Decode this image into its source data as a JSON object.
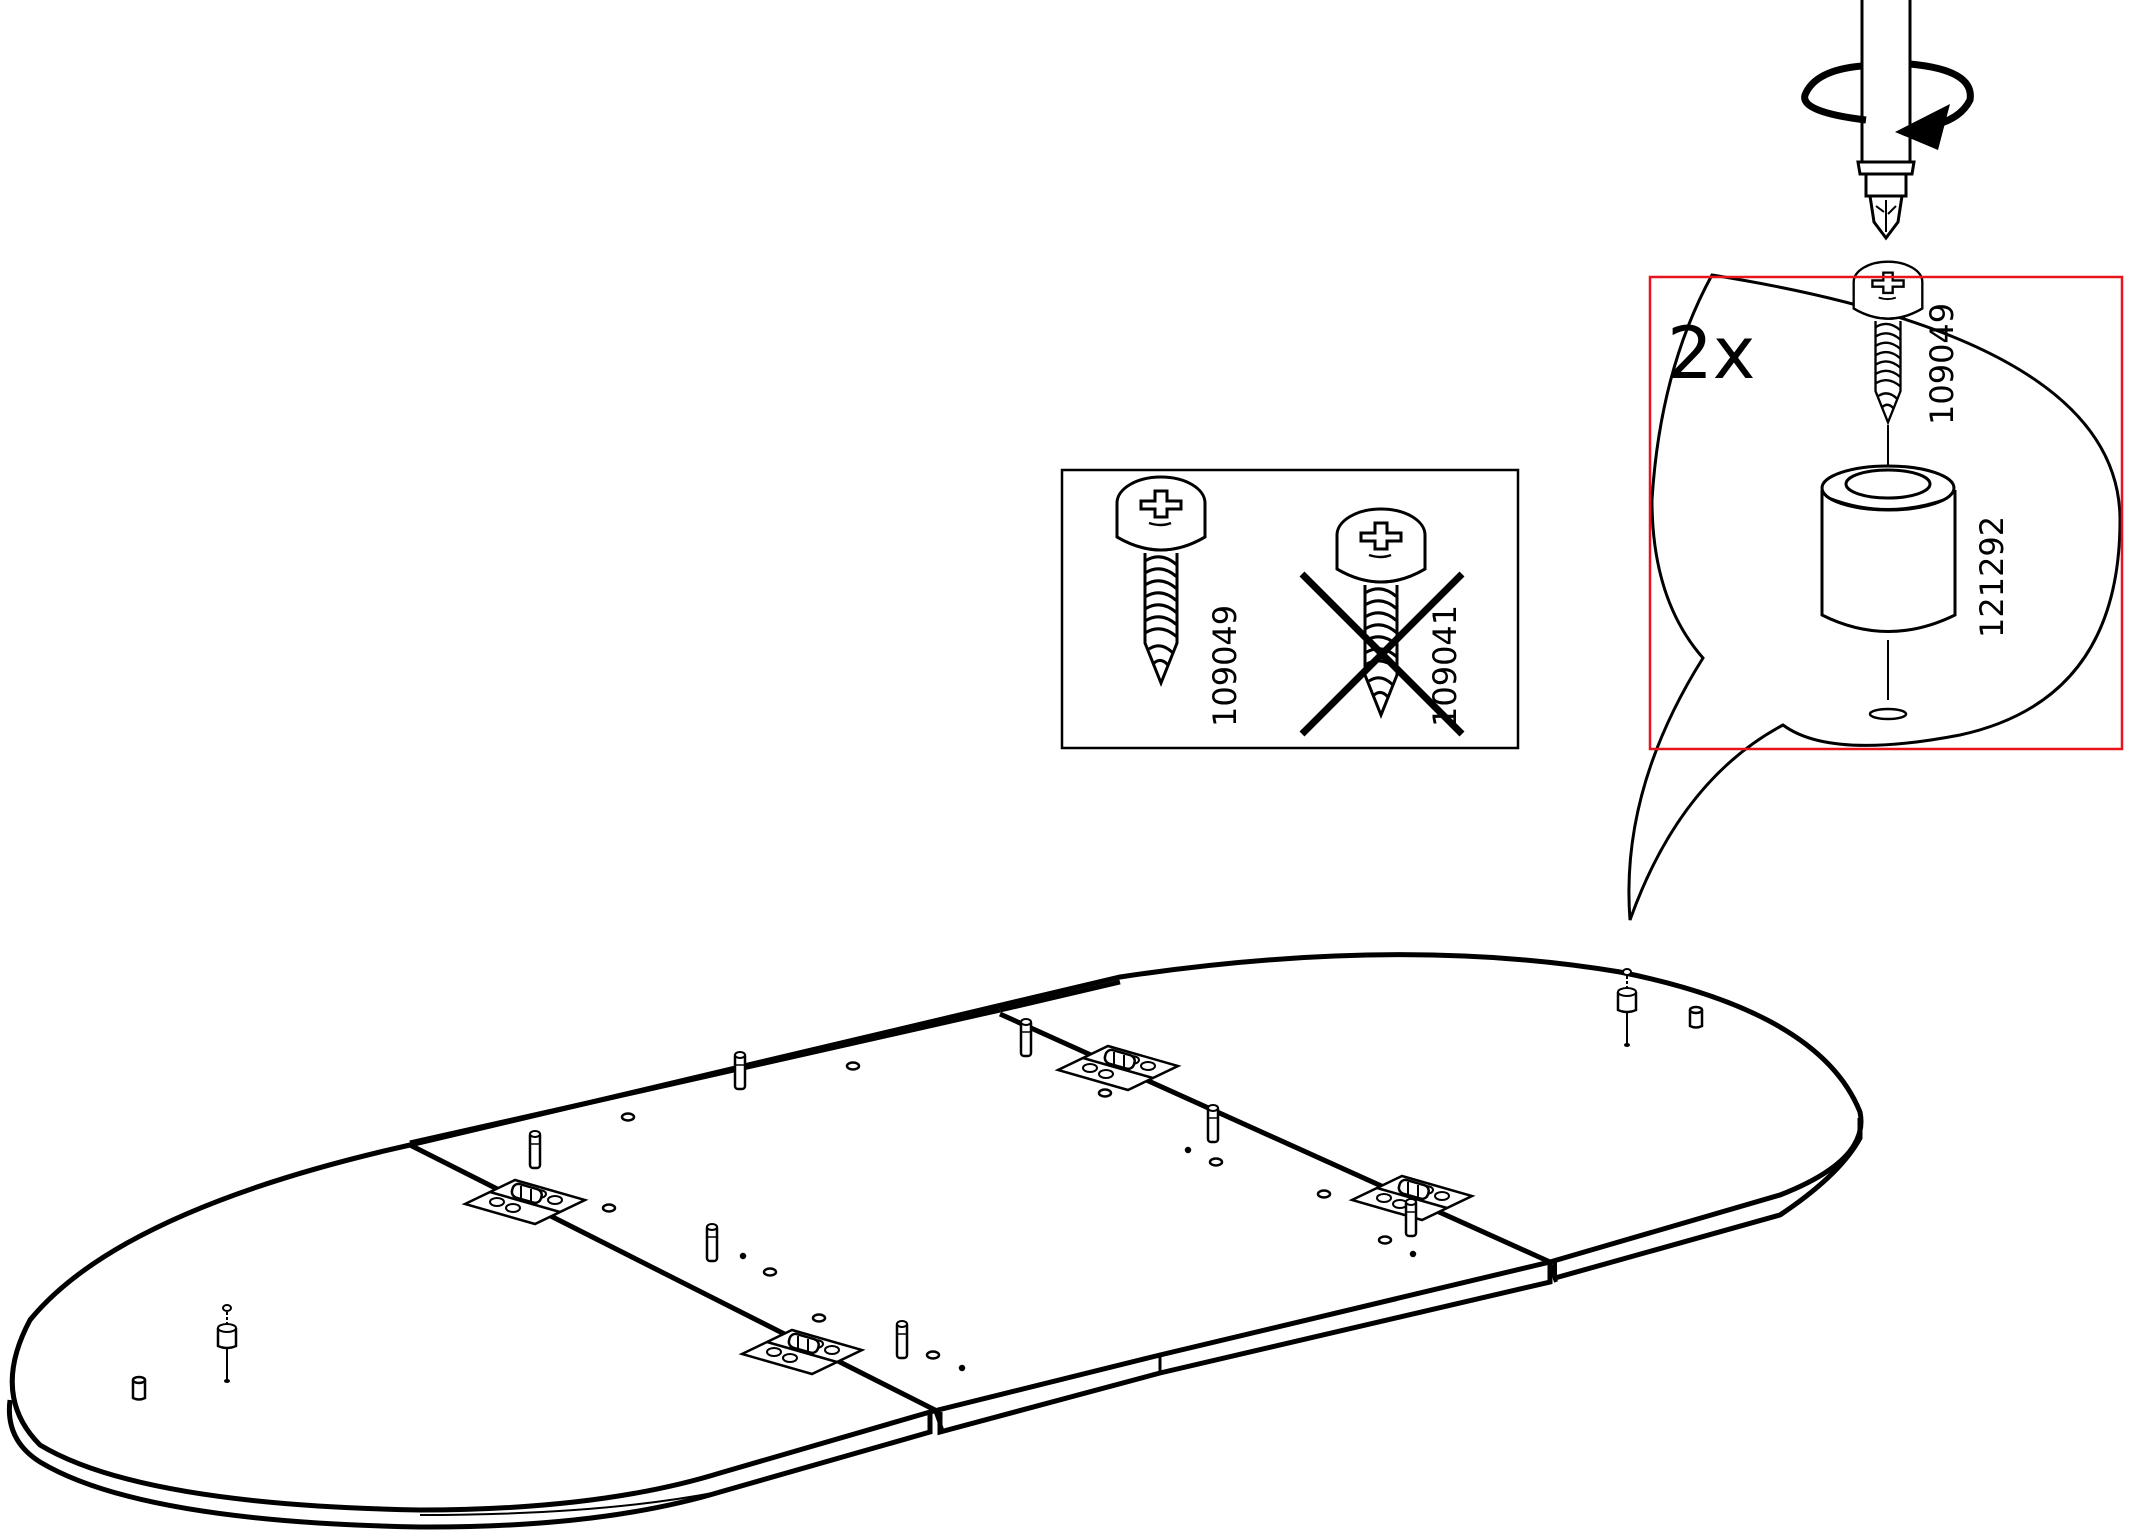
{
  "detail": {
    "quantity": "2x",
    "screw_part": "109049",
    "foot_part": "121292",
    "highlight_color": "#e8141b"
  },
  "screw_comparison": {
    "correct_part": "109049",
    "wrong_part": "109041"
  },
  "icons": [
    "screwdriver-icon",
    "rotation-arrow-icon",
    "screw-icon",
    "foot-pad-icon",
    "cross-mark-icon",
    "hinge-icon",
    "dowel-icon"
  ]
}
